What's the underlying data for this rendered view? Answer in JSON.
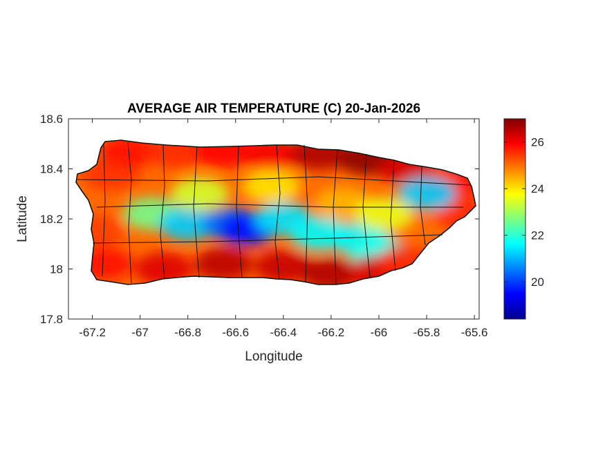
{
  "chart_data": {
    "type": "heatmap",
    "title": "AVERAGE AIR TEMPERATURE (C) 20-Jan-2026",
    "xlabel": "Longitude",
    "ylabel": "Latitude",
    "xlim": [
      -67.3,
      -65.58
    ],
    "ylim": [
      17.8,
      18.6
    ],
    "xticks": [
      -67.2,
      -67,
      -66.8,
      -66.6,
      -66.4,
      -66.2,
      -66,
      -65.8,
      -65.6
    ],
    "xtick_labels": [
      "-67.2",
      "-67",
      "-66.8",
      "-66.6",
      "-66.4",
      "-66.2",
      "-66",
      "-65.8",
      "-65.6"
    ],
    "yticks": [
      17.8,
      18,
      18.2,
      18.4,
      18.6
    ],
    "ytick_labels": [
      "17.8",
      "18",
      "18.2",
      "18.4",
      "18.6"
    ],
    "colormap": "jet",
    "clim": [
      18.4,
      27.0
    ],
    "colorbar_ticks": [
      20,
      22,
      24,
      26
    ],
    "colorbar_tick_labels": [
      "20",
      "22",
      "24",
      "26"
    ],
    "grid": false,
    "regions": [
      {
        "lon": -67.12,
        "lat": 18.38,
        "value": 25.5
      },
      {
        "lon": -67.05,
        "lat": 18.47,
        "value": 25.8
      },
      {
        "lon": -66.85,
        "lat": 18.47,
        "value": 25.6
      },
      {
        "lon": -66.65,
        "lat": 18.47,
        "value": 25.9
      },
      {
        "lon": -66.45,
        "lat": 18.46,
        "value": 26.0
      },
      {
        "lon": -66.25,
        "lat": 18.46,
        "value": 26.6
      },
      {
        "lon": -66.05,
        "lat": 18.44,
        "value": 26.9
      },
      {
        "lon": -65.88,
        "lat": 18.4,
        "value": 26.3
      },
      {
        "lon": -65.7,
        "lat": 18.34,
        "value": 25.8
      },
      {
        "lon": -65.65,
        "lat": 18.22,
        "value": 25.6
      },
      {
        "lon": -65.8,
        "lat": 18.3,
        "value": 21.2
      },
      {
        "lon": -65.88,
        "lat": 18.15,
        "value": 25.0
      },
      {
        "lon": -66.95,
        "lat": 18.22,
        "value": 22.6
      },
      {
        "lon": -66.8,
        "lat": 18.18,
        "value": 21.2
      },
      {
        "lon": -66.62,
        "lat": 18.18,
        "value": 20.4
      },
      {
        "lon": -66.55,
        "lat": 18.16,
        "value": 19.6
      },
      {
        "lon": -66.4,
        "lat": 18.2,
        "value": 21.4
      },
      {
        "lon": -66.25,
        "lat": 18.14,
        "value": 21.6
      },
      {
        "lon": -66.08,
        "lat": 18.12,
        "value": 21.6
      },
      {
        "lon": -66.0,
        "lat": 18.06,
        "value": 21.8
      },
      {
        "lon": -66.75,
        "lat": 18.3,
        "value": 23.4
      },
      {
        "lon": -66.45,
        "lat": 18.33,
        "value": 24.0
      },
      {
        "lon": -66.15,
        "lat": 18.26,
        "value": 24.4
      },
      {
        "lon": -65.98,
        "lat": 18.22,
        "value": 23.6
      },
      {
        "lon": -67.18,
        "lat": 18.15,
        "value": 25.4
      },
      {
        "lon": -67.15,
        "lat": 18.02,
        "value": 25.8
      },
      {
        "lon": -66.9,
        "lat": 18.0,
        "value": 26.2
      },
      {
        "lon": -66.65,
        "lat": 18.02,
        "value": 26.5
      },
      {
        "lon": -66.4,
        "lat": 18.01,
        "value": 26.4
      },
      {
        "lon": -66.2,
        "lat": 17.98,
        "value": 26.6
      },
      {
        "lon": -66.0,
        "lat": 17.99,
        "value": 26.2
      },
      {
        "lon": -65.88,
        "lat": 18.03,
        "value": 25.6
      }
    ]
  }
}
